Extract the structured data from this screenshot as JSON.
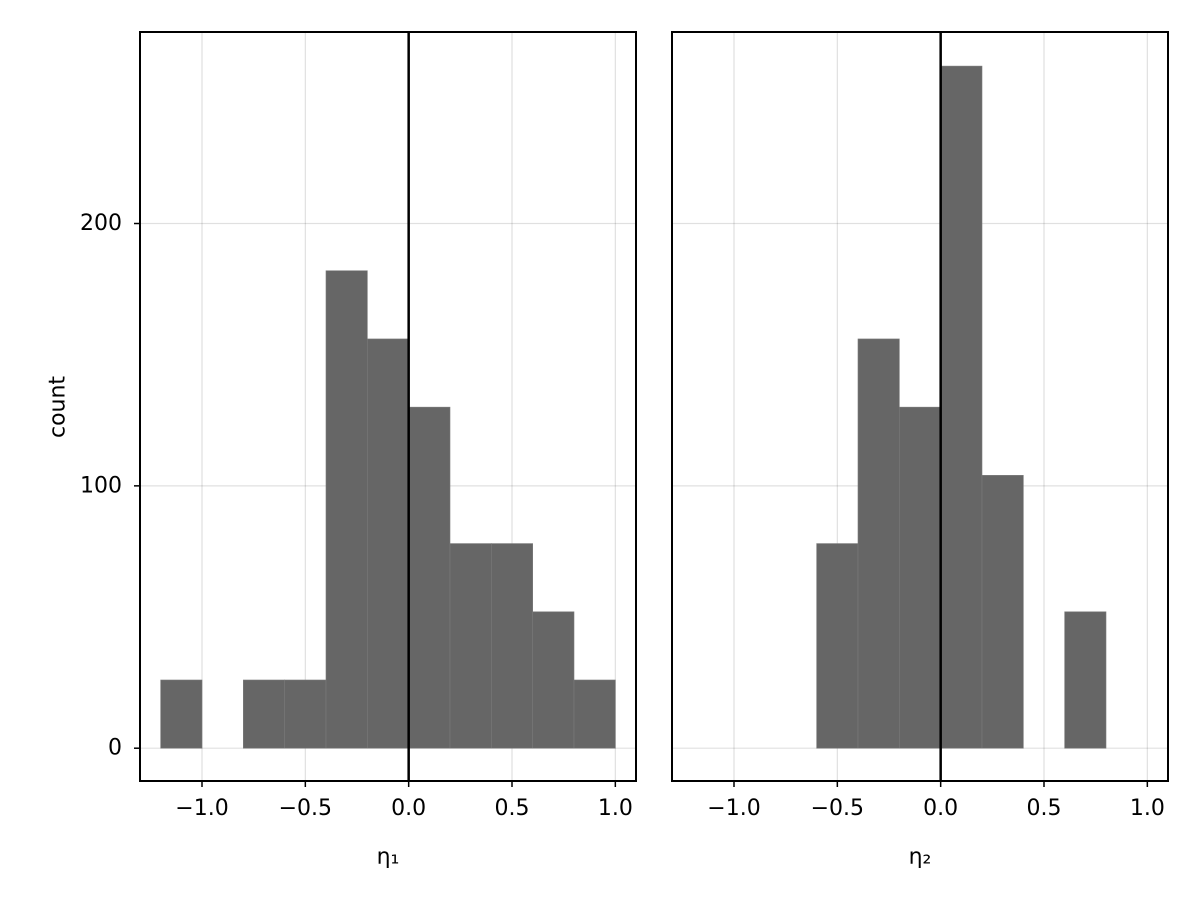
{
  "chart_data": [
    {
      "type": "bar",
      "subtype": "histogram",
      "xlabel": "η₁",
      "ylabel": "count",
      "xlim": [
        -1.3,
        1.1
      ],
      "ylim": [
        -12.5,
        273
      ],
      "xticks": [
        -1.0,
        -0.5,
        0.0,
        0.5,
        1.0
      ],
      "xtick_labels": [
        "−1.0",
        "−0.5",
        "0.0",
        "0.5",
        "1.0"
      ],
      "yticks": [
        0,
        100,
        200
      ],
      "ytick_labels": [
        "0",
        "100",
        "200"
      ],
      "grid": true,
      "reference_line_x": 0,
      "bar_color": "#666666",
      "bins": [
        {
          "x0": -1.2,
          "x1": -1.0,
          "count": 26
        },
        {
          "x0": -0.8,
          "x1": -0.6,
          "count": 26
        },
        {
          "x0": -0.6,
          "x1": -0.4,
          "count": 26
        },
        {
          "x0": -0.4,
          "x1": -0.2,
          "count": 182
        },
        {
          "x0": -0.2,
          "x1": 0.0,
          "count": 156
        },
        {
          "x0": 0.0,
          "x1": 0.2,
          "count": 130
        },
        {
          "x0": 0.2,
          "x1": 0.4,
          "count": 78
        },
        {
          "x0": 0.4,
          "x1": 0.6,
          "count": 78
        },
        {
          "x0": 0.6,
          "x1": 0.8,
          "count": 52
        },
        {
          "x0": 0.8,
          "x1": 1.0,
          "count": 26
        }
      ]
    },
    {
      "type": "bar",
      "subtype": "histogram",
      "xlabel": "η₂",
      "ylabel": "",
      "xlim": [
        -1.3,
        1.1
      ],
      "ylim": [
        -12.5,
        273
      ],
      "xticks": [
        -1.0,
        -0.5,
        0.0,
        0.5,
        1.0
      ],
      "xtick_labels": [
        "−1.0",
        "−0.5",
        "0.0",
        "0.5",
        "1.0"
      ],
      "yticks": [
        0,
        100,
        200
      ],
      "ytick_labels": [],
      "grid": true,
      "reference_line_x": 0,
      "bar_color": "#666666",
      "bins": [
        {
          "x0": -0.6,
          "x1": -0.4,
          "count": 78
        },
        {
          "x0": -0.4,
          "x1": -0.2,
          "count": 156
        },
        {
          "x0": -0.2,
          "x1": 0.0,
          "count": 130
        },
        {
          "x0": 0.0,
          "x1": 0.2,
          "count": 260
        },
        {
          "x0": 0.2,
          "x1": 0.4,
          "count": 104
        },
        {
          "x0": 0.6,
          "x1": 0.8,
          "count": 52
        }
      ]
    }
  ]
}
